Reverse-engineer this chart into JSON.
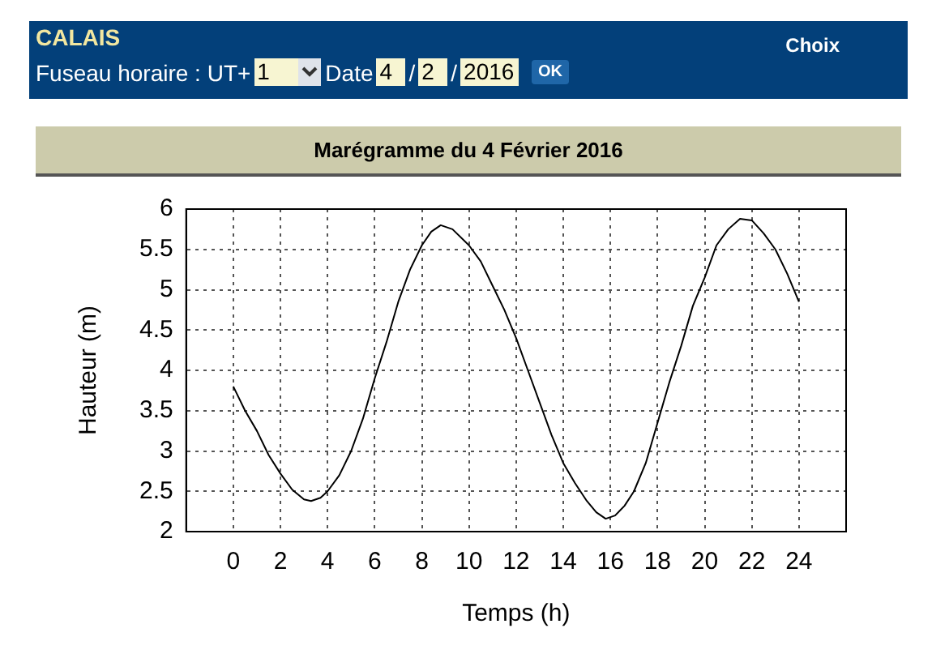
{
  "chart_data": {
    "type": "line",
    "title": "Marégramme du 4 Février 2016",
    "xlabel": "Temps (h)",
    "ylabel": "Hauteur (m)",
    "annotations": [
      "CALAIS",
      "Fuseau horaire : UT+",
      "1",
      "Date",
      "4",
      "/",
      "2",
      "/",
      "2016",
      "OK",
      "Choix"
    ],
    "series": [
      {
        "color": "#000000",
        "x": [
          0,
          0.5,
          1,
          1.5,
          2,
          2.5,
          3,
          3.3,
          3.7,
          4,
          4.5,
          5,
          5.5,
          6,
          6.5,
          7,
          7.5,
          8,
          8.4,
          8.8,
          9.3,
          10,
          10.5,
          11,
          11.5,
          12,
          12.5,
          13,
          13.5,
          14,
          14.5,
          15,
          15.4,
          15.8,
          16.2,
          16.6,
          17,
          17.5,
          18,
          18.5,
          19,
          19.5,
          20,
          20.5,
          21,
          21.5,
          22,
          22.5,
          23,
          23.5,
          24
        ],
        "values": [
          3.8,
          3.5,
          3.25,
          2.95,
          2.72,
          2.52,
          2.4,
          2.38,
          2.42,
          2.5,
          2.7,
          3.0,
          3.4,
          3.9,
          4.35,
          4.85,
          5.25,
          5.55,
          5.72,
          5.8,
          5.75,
          5.55,
          5.35,
          5.05,
          4.75,
          4.4,
          4.0,
          3.6,
          3.2,
          2.85,
          2.6,
          2.38,
          2.24,
          2.16,
          2.2,
          2.32,
          2.5,
          2.85,
          3.35,
          3.85,
          4.3,
          4.8,
          5.15,
          5.55,
          5.75,
          5.88,
          5.86,
          5.7,
          5.5,
          5.2,
          4.85
        ]
      }
    ],
    "xlim": [
      -2,
      26
    ],
    "xticks": [
      0,
      2,
      4,
      6,
      8,
      10,
      12,
      14,
      16,
      18,
      20,
      22,
      24
    ],
    "ylim": [
      2,
      6
    ],
    "yticks": [
      2,
      2.5,
      3,
      3.5,
      4,
      4.5,
      5,
      5.5,
      6
    ],
    "grid": true,
    "legend": false,
    "marker": "none",
    "line_style": "solid"
  }
}
